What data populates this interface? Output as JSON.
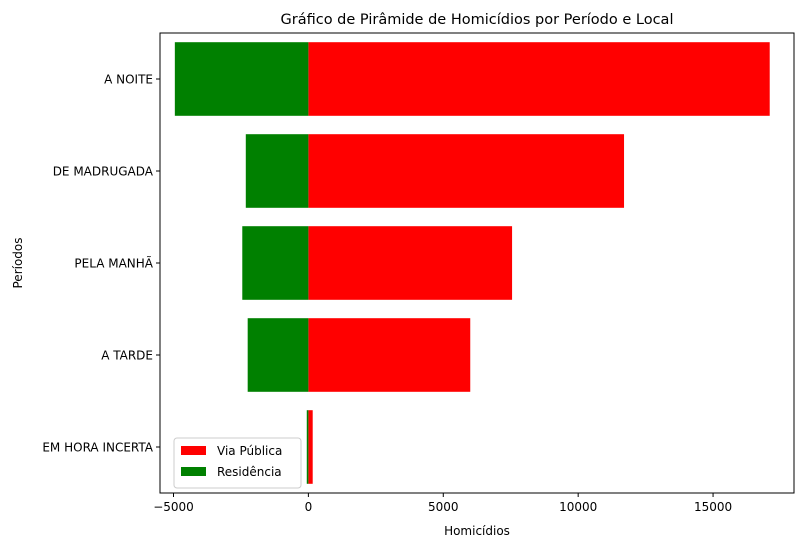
{
  "chart_data": {
    "type": "bar",
    "orientation": "horizontal",
    "layout": "pyramid",
    "title": "Gráfico de Pirâmide de Homicídios por Período e Local",
    "xlabel": "Homicídios",
    "ylabel": "Períodos",
    "xlim": [
      -5500,
      18000
    ],
    "x_ticks": [
      -5000,
      0,
      5000,
      10000,
      15000
    ],
    "x_tick_labels": [
      "−5000",
      "0",
      "5000",
      "10000",
      "15000"
    ],
    "categories": [
      "A NOITE",
      "DE MADRUGADA",
      "PELA MANHÃ",
      "A TARDE",
      "EM HORA INCERTA"
    ],
    "series": [
      {
        "name": "Via Pública",
        "color": "#ff0000",
        "values": [
          17100,
          11700,
          7550,
          6000,
          160
        ]
      },
      {
        "name": "Residência",
        "color": "#008000",
        "values": [
          -4950,
          -2320,
          -2450,
          -2250,
          -60
        ]
      }
    ],
    "legend_position": "lower-left",
    "grid": false
  }
}
